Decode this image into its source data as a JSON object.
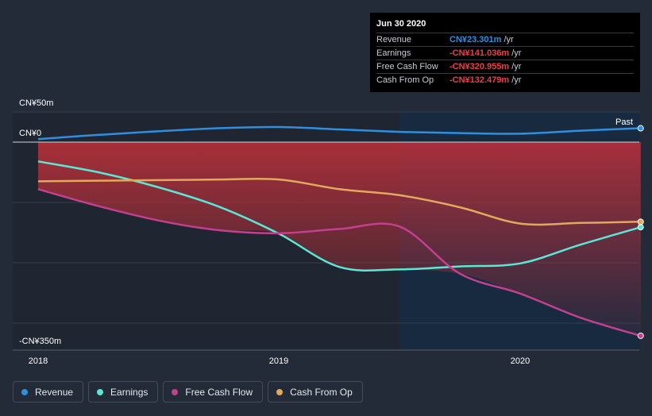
{
  "tooltip": {
    "date": "Jun 30 2020",
    "rows": [
      {
        "name": "Revenue",
        "value": "CN¥23.301m",
        "unit": "/yr",
        "color": "#2e8fe0"
      },
      {
        "name": "Earnings",
        "value": "-CN¥141.036m",
        "unit": "/yr",
        "color": "#e8404a"
      },
      {
        "name": "Free Cash Flow",
        "value": "-CN¥320.955m",
        "unit": "/yr",
        "color": "#e8404a"
      },
      {
        "name": "Cash From Op",
        "value": "-CN¥132.479m",
        "unit": "/yr",
        "color": "#e8404a"
      }
    ]
  },
  "legend": [
    {
      "label": "Revenue",
      "color": "#2e8fe0"
    },
    {
      "label": "Earnings",
      "color": "#5de6d5"
    },
    {
      "label": "Free Cash Flow",
      "color": "#c2408f"
    },
    {
      "label": "Cash From Op",
      "color": "#e2a85e"
    }
  ],
  "past_label": "Past",
  "chart_data": {
    "type": "line",
    "y_tick_labels": [
      "CN¥50m",
      "CN¥0",
      "-CN¥350m"
    ],
    "x_tick_labels": [
      "2018",
      "2019",
      "2020"
    ],
    "ylim": [
      -350,
      50
    ],
    "xlim": [
      2017.95,
      2020.5
    ],
    "grid": true,
    "past_region_start": 2019.5,
    "series": [
      {
        "name": "Revenue",
        "color": "#2e8fe0",
        "x": [
          2018.0,
          2018.25,
          2018.5,
          2018.75,
          2019.0,
          2019.25,
          2019.5,
          2019.75,
          2020.0,
          2020.25,
          2020.5
        ],
        "y": [
          5,
          12,
          18,
          23,
          25,
          21,
          17,
          15,
          14,
          19,
          23
        ]
      },
      {
        "name": "Earnings",
        "color": "#5de6d5",
        "x": [
          2018.0,
          2018.25,
          2018.5,
          2018.75,
          2019.0,
          2019.25,
          2019.5,
          2019.75,
          2020.0,
          2020.25,
          2020.5
        ],
        "y": [
          -32,
          -50,
          -75,
          -107,
          -152,
          -207,
          -211,
          -206,
          -201,
          -170,
          -141
        ]
      },
      {
        "name": "Free Cash Flow",
        "color": "#c2408f",
        "x": [
          2018.0,
          2018.25,
          2018.5,
          2018.75,
          2019.0,
          2019.25,
          2019.5,
          2019.75,
          2020.0,
          2020.25,
          2020.5
        ],
        "y": [
          -78,
          -106,
          -130,
          -146,
          -151,
          -144,
          -140,
          -218,
          -251,
          -291,
          -321
        ]
      },
      {
        "name": "Cash From Op",
        "color": "#e2a85e",
        "x": [
          2018.0,
          2018.25,
          2018.5,
          2018.75,
          2019.0,
          2019.25,
          2019.5,
          2019.75,
          2020.0,
          2020.25,
          2020.5
        ],
        "y": [
          -65,
          -64,
          -63,
          -62,
          -62,
          -78,
          -88,
          -108,
          -135,
          -134,
          -132
        ]
      }
    ]
  }
}
